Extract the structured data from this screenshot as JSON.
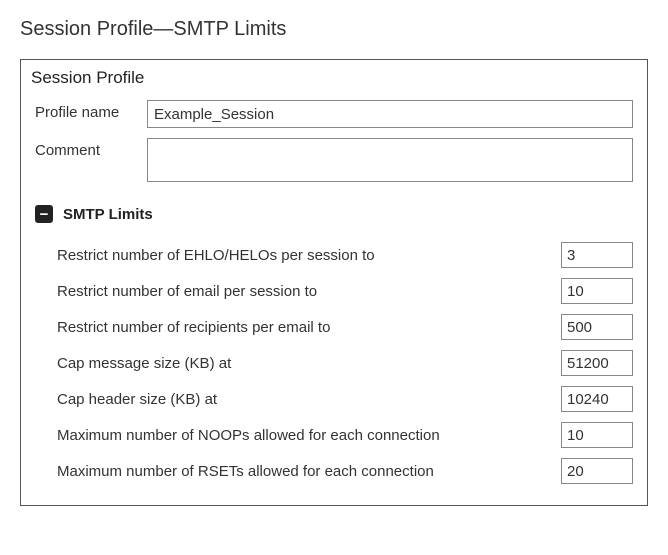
{
  "page": {
    "title": "Session Profile—SMTP Limits"
  },
  "panel": {
    "header": "Session Profile",
    "profile_name": {
      "label": "Profile name",
      "value": "Example_Session"
    },
    "comment": {
      "label": "Comment",
      "value": ""
    }
  },
  "smtp_limits": {
    "title": "SMTP Limits",
    "collapse_symbol": "−",
    "rows": [
      {
        "label": "Restrict number of EHLO/HELOs per session to",
        "value": "3"
      },
      {
        "label": "Restrict number of email per session to",
        "value": "10"
      },
      {
        "label": "Restrict number of recipients per email to",
        "value": "500"
      },
      {
        "label": "Cap message size (KB) at",
        "value": "51200"
      },
      {
        "label": "Cap header size (KB) at",
        "value": "10240"
      },
      {
        "label": "Maximum number of NOOPs allowed for each connection",
        "value": "10"
      },
      {
        "label": "Maximum number of RSETs allowed for each connection",
        "value": "20"
      }
    ]
  }
}
